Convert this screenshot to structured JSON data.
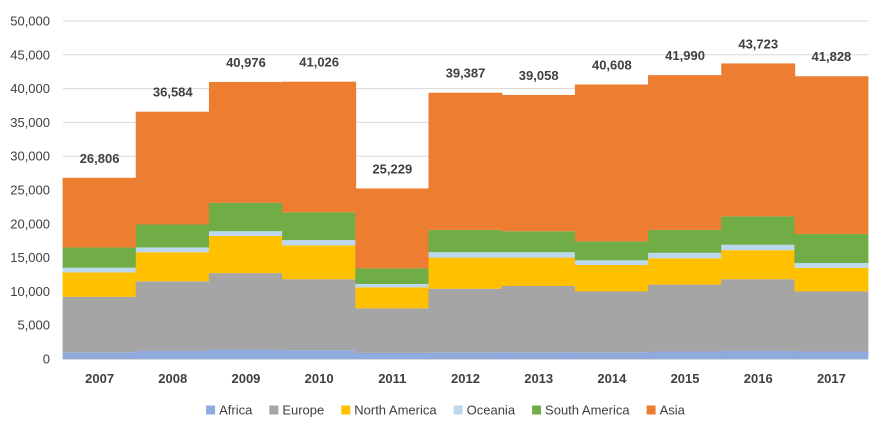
{
  "chart_data": {
    "type": "bar",
    "stacked": true,
    "categories": [
      "2007",
      "2008",
      "2009",
      "2010",
      "2011",
      "2012",
      "2013",
      "2014",
      "2015",
      "2016",
      "2017"
    ],
    "series": [
      {
        "name": "Africa",
        "color": "#8faadc",
        "values": [
          1000,
          1200,
          1400,
          1300,
          900,
          1000,
          1000,
          1000,
          1100,
          1200,
          1100
        ]
      },
      {
        "name": "Europe",
        "color": "#a5a5a5",
        "values": [
          8200,
          10300,
          11300,
          10500,
          6600,
          9400,
          9800,
          9000,
          9900,
          10600,
          8900
        ]
      },
      {
        "name": "North America",
        "color": "#ffc000",
        "values": [
          3600,
          4300,
          5500,
          5000,
          3100,
          4600,
          4200,
          3900,
          3900,
          4300,
          3500
        ]
      },
      {
        "name": "Oceania",
        "color": "#bdd7ee",
        "values": [
          700,
          700,
          700,
          800,
          500,
          800,
          800,
          700,
          800,
          800,
          700
        ]
      },
      {
        "name": "South America",
        "color": "#70ad47",
        "values": [
          3000,
          3400,
          4200,
          4100,
          2300,
          3300,
          3100,
          2800,
          3400,
          4200,
          4300
        ]
      },
      {
        "name": "Asia",
        "color": "#ed7d31",
        "values": [
          10306,
          16684,
          17876,
          19326,
          11829,
          20287,
          20158,
          23208,
          22890,
          22623,
          23328
        ]
      }
    ],
    "totals": [
      26806,
      36584,
      40976,
      41026,
      25229,
      39387,
      39058,
      40608,
      41990,
      43723,
      41828
    ],
    "total_labels": [
      "26,806",
      "36,584",
      "40,976",
      "41,026",
      "25,229",
      "39,387",
      "39,058",
      "40,608",
      "41,990",
      "43,723",
      "41,828"
    ],
    "ylim": [
      0,
      50000
    ],
    "y_ticks": [
      "0",
      "5,000",
      "10,000",
      "15,000",
      "20,000",
      "25,000",
      "30,000",
      "35,000",
      "40,000",
      "45,000",
      "50,000"
    ],
    "grid": true,
    "legend_position": "bottom",
    "gridline_color": "#d9d9d9",
    "title": "",
    "xlabel": "",
    "ylabel": ""
  }
}
